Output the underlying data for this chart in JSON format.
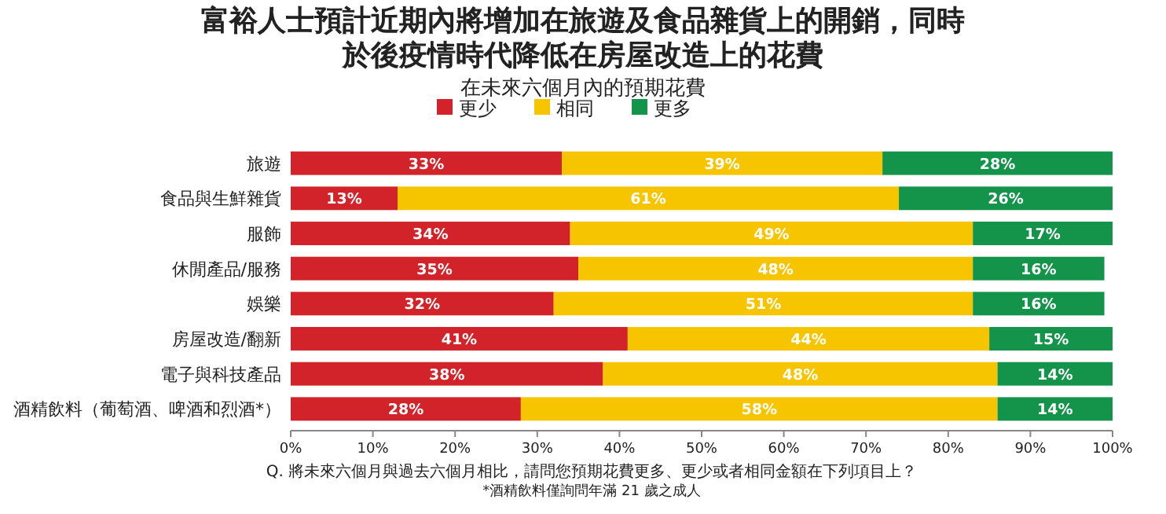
{
  "chart_data": {
    "type": "bar",
    "orientation": "horizontal",
    "stacked": true,
    "title": "富裕人士預計近期內將增加在旅遊及食品雜貨上的開銷，同時於後疫情時代降低在房屋改造上的花費",
    "subtitle": "在未來六個月內的預期花費",
    "categories": [
      "旅遊",
      "食品與生鮮雜貨",
      "服飾",
      "休閒產品/服務",
      "娛樂",
      "房屋改造/翻新",
      "電子與科技產品",
      "酒精飲料（葡萄酒、啤酒和烈酒*）"
    ],
    "series": [
      {
        "name": "更少",
        "color": "#d2232a",
        "values": [
          33,
          13,
          34,
          35,
          32,
          41,
          38,
          28
        ]
      },
      {
        "name": "相同",
        "color": "#f7c500",
        "values": [
          39,
          61,
          49,
          48,
          51,
          44,
          48,
          58
        ]
      },
      {
        "name": "更多",
        "color": "#14934a",
        "values": [
          28,
          26,
          17,
          16,
          16,
          15,
          14,
          14
        ]
      }
    ],
    "xlim": [
      0,
      100
    ],
    "xticks": [
      {
        "value": 0,
        "label": "0%"
      },
      {
        "value": 10,
        "label": "10%"
      },
      {
        "value": 20,
        "label": "20%"
      },
      {
        "value": 30,
        "label": "30%"
      },
      {
        "value": 40,
        "label": "40%"
      },
      {
        "value": 50,
        "label": "50%"
      },
      {
        "value": 60,
        "label": "60%"
      },
      {
        "value": 70,
        "label": "70%"
      },
      {
        "value": 80,
        "label": "80%"
      },
      {
        "value": 90,
        "label": "90%"
      },
      {
        "value": 100,
        "label": "100%"
      }
    ],
    "value_labels": [
      [
        "33%",
        "13%",
        "34%",
        "35%",
        "32%",
        "41%",
        "38%",
        "28%"
      ],
      [
        "39%",
        "61%",
        "49%",
        "48%",
        "51%",
        "44%",
        "48%",
        "58%"
      ],
      [
        "28%",
        "26%",
        "17%",
        "16%",
        "16%",
        "15%",
        "14%",
        "14%"
      ]
    ],
    "legend": "top",
    "grid": false,
    "annotations": [
      "Q. 將未來六個月與過去六個月相比，請問您預期花費更多、更少或者相同金額在下列項目上？",
      "*酒精飲料僅詢問年滿 21 歲之成人"
    ]
  }
}
